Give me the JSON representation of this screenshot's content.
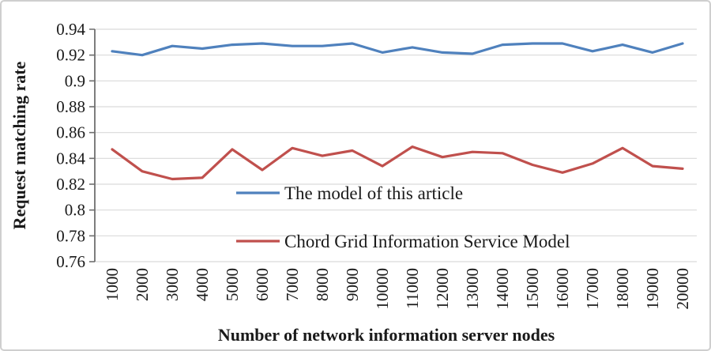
{
  "figure": {
    "background": "#ffffff",
    "border_color": "#cfcfcf"
  },
  "chart_data": {
    "type": "line",
    "title": "",
    "xlabel": "Number of network information server nodes",
    "ylabel": "Request matching rate",
    "x": [
      1000,
      2000,
      3000,
      4000,
      5000,
      6000,
      7000,
      8000,
      9000,
      10000,
      11000,
      12000,
      13000,
      14000,
      15000,
      16000,
      17000,
      18000,
      19000,
      20000
    ],
    "series": [
      {
        "name": "The model of this article",
        "color": "#4F81BD",
        "values": [
          0.923,
          0.92,
          0.927,
          0.925,
          0.928,
          0.929,
          0.927,
          0.927,
          0.929,
          0.922,
          0.926,
          0.922,
          0.921,
          0.928,
          0.929,
          0.929,
          0.923,
          0.928,
          0.922,
          0.929
        ]
      },
      {
        "name": "Chord Grid Information Service Model",
        "color": "#C0504D",
        "values": [
          0.847,
          0.83,
          0.824,
          0.825,
          0.847,
          0.831,
          0.848,
          0.842,
          0.846,
          0.834,
          0.849,
          0.841,
          0.845,
          0.844,
          0.835,
          0.829,
          0.836,
          0.848,
          0.834,
          0.832
        ]
      }
    ],
    "ylim": [
      0.76,
      0.94
    ],
    "ytick_step": 0.02,
    "ytick_labels": [
      "0.94",
      "0.92",
      "0.9",
      "0.88",
      "0.86",
      "0.84",
      "0.82",
      "0.8",
      "0.78",
      "0.76"
    ],
    "grid": true,
    "legend_position": "inside-center-left",
    "grid_color": "#d9d9d9",
    "axis_color": "#6f6f6f",
    "text_color": "#1a1a1a"
  }
}
